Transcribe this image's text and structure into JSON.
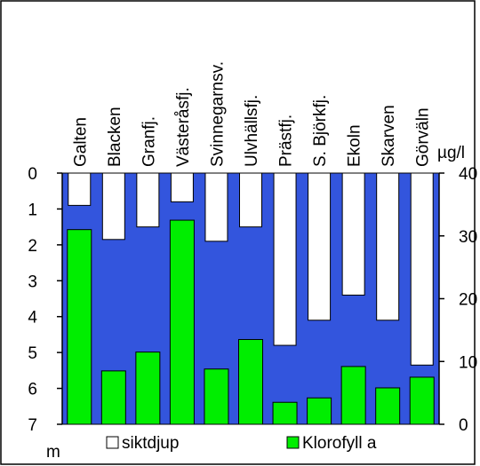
{
  "chart_data": {
    "type": "bar",
    "categories": [
      "Galten",
      "Blacken",
      "Granfj.",
      "Västeråsfj.",
      "Svinnegarnsv.",
      "Ulvhällsfj.",
      "Prästfj.",
      "S. Björkfj.",
      "Ekoln",
      "Skarven",
      "Görväln"
    ],
    "series": [
      {
        "name": "siktdjup",
        "axis": "left",
        "unit": "m",
        "color": "#ffffff",
        "values": [
          0.9,
          1.85,
          1.5,
          0.8,
          1.9,
          1.5,
          4.8,
          4.1,
          3.4,
          4.1,
          5.35
        ]
      },
      {
        "name": "Klorofyll a",
        "axis": "right",
        "unit": "µg/l",
        "color": "#00ee00",
        "values": [
          31,
          8.5,
          11.5,
          32.5,
          8.8,
          13.5,
          3.5,
          4.2,
          9.2,
          5.8,
          7.5
        ]
      }
    ],
    "left_axis": {
      "label": "m",
      "range": [
        0,
        7
      ],
      "inverted": true,
      "ticks": [
        "0",
        "1",
        "2",
        "3",
        "4",
        "5",
        "6",
        "7"
      ]
    },
    "right_axis": {
      "label": "µg/l",
      "range": [
        0,
        40
      ],
      "ticks": [
        "0",
        "10",
        "20",
        "30",
        "40"
      ]
    },
    "background_color": "#3355dd",
    "legend_placement": "bottom"
  }
}
